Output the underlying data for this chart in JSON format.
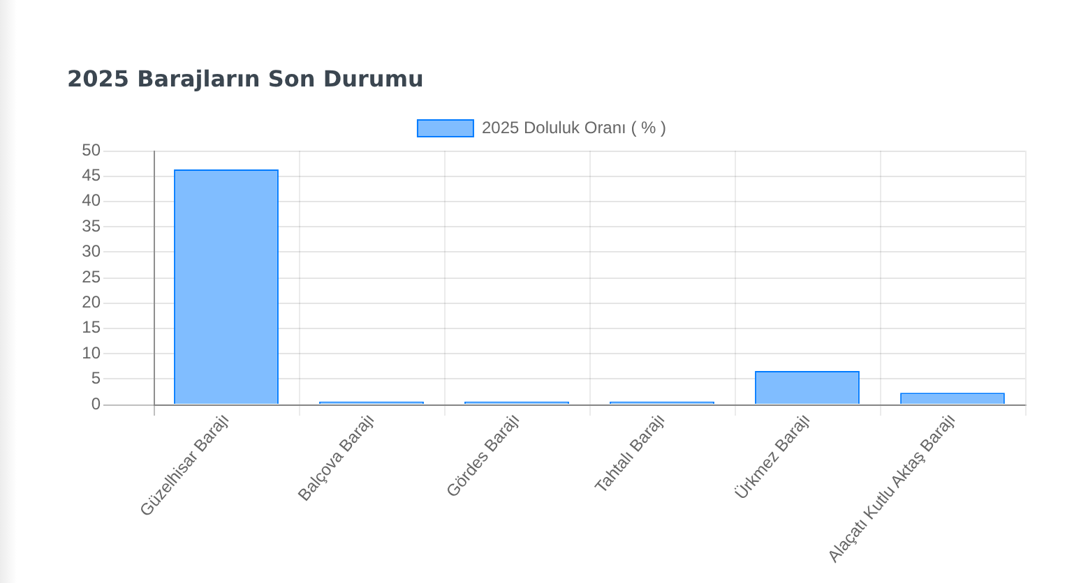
{
  "chart_data": {
    "type": "bar",
    "title": "2025 Barajların Son Durumu",
    "categories": [
      "Güzelhisar Barajı",
      "Balçova Barajı",
      "Gördes Barajı",
      "Tahtalı Barajı",
      "Ürkmez Barajı",
      "Alaçatı Kutlu Aktaş Barajı"
    ],
    "series": [
      {
        "name": "2025 Doluluk Oranı ( % )",
        "color": "#80bdff",
        "values": [
          46.3,
          0,
          0,
          0,
          6.6,
          2.3
        ]
      }
    ],
    "ylim": [
      0,
      50
    ],
    "yticks": [
      0,
      5,
      10,
      15,
      20,
      25,
      30,
      35,
      40,
      45,
      50
    ],
    "grid": true,
    "legend": "top"
  }
}
